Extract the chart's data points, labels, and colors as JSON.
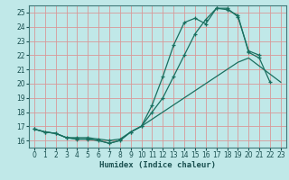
{
  "title": "",
  "xlabel": "Humidex (Indice chaleur)",
  "bg_color": "#c0e8e8",
  "grid_color": "#d89898",
  "line_color": "#1a7060",
  "xlim": [
    -0.5,
    23.5
  ],
  "ylim": [
    15.5,
    25.5
  ],
  "yticks": [
    16,
    17,
    18,
    19,
    20,
    21,
    22,
    23,
    24,
    25
  ],
  "xticks": [
    0,
    1,
    2,
    3,
    4,
    5,
    6,
    7,
    8,
    9,
    10,
    11,
    12,
    13,
    14,
    15,
    16,
    17,
    18,
    19,
    20,
    21,
    22,
    23
  ],
  "line1_x": [
    0,
    1,
    2,
    3,
    4,
    5,
    6,
    7,
    8,
    9,
    10,
    11,
    12,
    13,
    14,
    15,
    16,
    17,
    18,
    19,
    20,
    21,
    22
  ],
  "line1_y": [
    16.8,
    16.6,
    16.5,
    16.2,
    16.1,
    16.1,
    16.0,
    15.8,
    16.0,
    16.6,
    17.0,
    18.5,
    20.5,
    22.7,
    24.3,
    24.6,
    24.2,
    25.3,
    25.2,
    24.8,
    22.2,
    21.8,
    20.1
  ],
  "line2_x": [
    0,
    1,
    2,
    3,
    4,
    5,
    6,
    7,
    8,
    9,
    10,
    11,
    12,
    13,
    14,
    15,
    16,
    17,
    18,
    19,
    20,
    23
  ],
  "line2_y": [
    16.8,
    16.6,
    16.5,
    16.2,
    16.1,
    16.1,
    16.0,
    15.8,
    16.0,
    16.6,
    17.0,
    17.5,
    18.0,
    18.5,
    19.0,
    19.5,
    20.0,
    20.5,
    21.0,
    21.5,
    21.8,
    20.1
  ],
  "line3_x": [
    0,
    1,
    2,
    3,
    4,
    5,
    6,
    7,
    8,
    9,
    10,
    11,
    12,
    13,
    14,
    15,
    16,
    17,
    18,
    19,
    20,
    21
  ],
  "line3_y": [
    16.8,
    16.6,
    16.5,
    16.2,
    16.2,
    16.2,
    16.1,
    16.0,
    16.1,
    16.6,
    17.0,
    18.0,
    19.0,
    20.5,
    22.0,
    23.5,
    24.5,
    25.3,
    25.3,
    24.7,
    22.3,
    22.0
  ]
}
